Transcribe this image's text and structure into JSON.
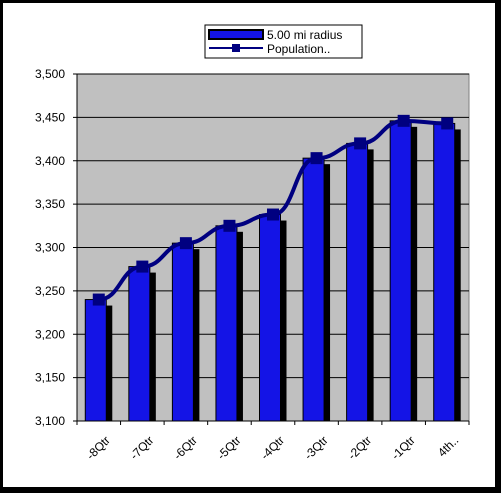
{
  "chart_data": {
    "type": "bar",
    "title": "",
    "xlabel": "",
    "ylabel": "",
    "categories": [
      "-8Qtr",
      "-7Qtr",
      "-6Qtr",
      "-5Qtr",
      "-4Qtr",
      "-3Qtr",
      "-2Qtr",
      "-1Qtr",
      "4th.."
    ],
    "ylim": [
      3100,
      3500
    ],
    "yticks": [
      3100,
      3150,
      3200,
      3250,
      3300,
      3350,
      3400,
      3450,
      3500
    ],
    "ytick_labels": [
      "3,100",
      "3,150",
      "3,200",
      "3,250",
      "3,300",
      "3,350",
      "3,400",
      "3,450",
      "3,500"
    ],
    "grid": true,
    "legend_position": "top-center",
    "series": [
      {
        "name": "5.00 mi radius",
        "kind": "bar",
        "color": "#1414e6",
        "values": [
          3240,
          3278,
          3305,
          3325,
          3338,
          3403,
          3420,
          3446,
          3443
        ]
      },
      {
        "name": "Population..",
        "kind": "line",
        "color": "#000080",
        "values": [
          3240,
          3278,
          3305,
          3325,
          3338,
          3403,
          3420,
          3446,
          3443
        ]
      }
    ],
    "plot_background": "#c0c0c0"
  }
}
